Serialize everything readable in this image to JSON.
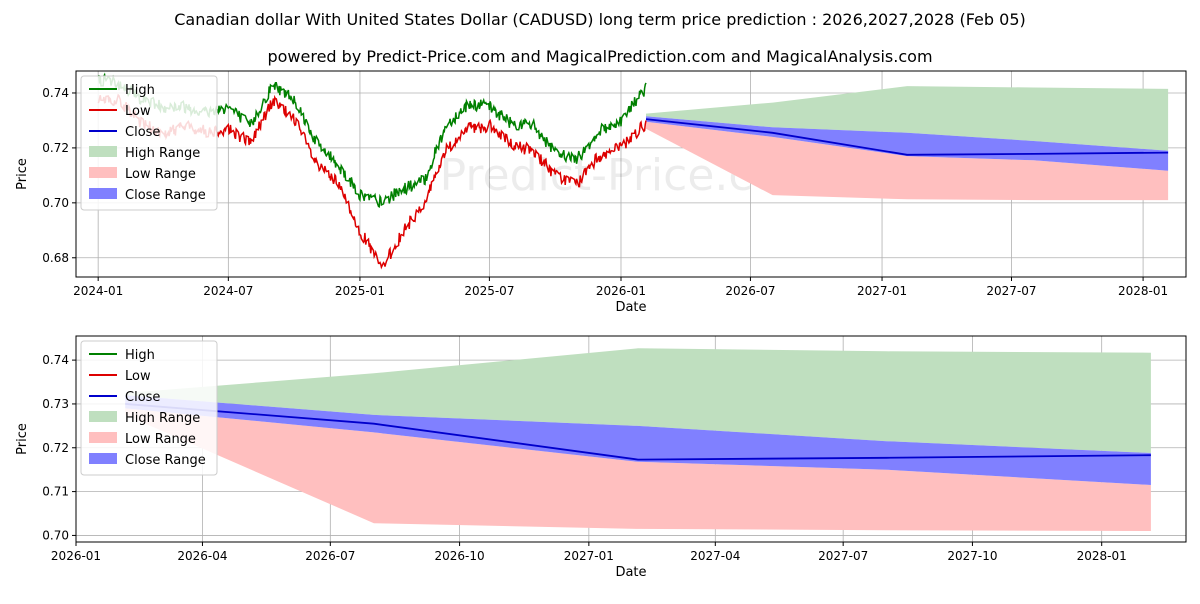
{
  "page": {
    "title": "Canadian dollar With United States Dollar (CADUSD) long term price prediction : 2026,2027,2028 (Feb 05)",
    "subtitle": "powered by Predict-Price.com and MagicalPrediction.com and MagicalAnalysis.com",
    "watermark": "Predict-Price.com"
  },
  "colors": {
    "high": "#008000",
    "low": "#dd0000",
    "close": "#0000cc",
    "high_range": "#bfdfbf",
    "low_range": "#ffbfbf",
    "close_range": "#8080ff",
    "grid": "#b0b0b0"
  },
  "chart_data": [
    {
      "type": "line",
      "xlabel": "Date",
      "ylabel": "Price",
      "xlim": [
        "2023-12-01",
        "2028-03-01"
      ],
      "ylim": [
        0.673,
        0.748
      ],
      "x_ticks": [
        {
          "date": "2024-01-01",
          "label": "2024-01"
        },
        {
          "date": "2024-07-01",
          "label": "2024-07"
        },
        {
          "date": "2025-01-01",
          "label": "2025-01"
        },
        {
          "date": "2025-07-01",
          "label": "2025-07"
        },
        {
          "date": "2026-01-01",
          "label": "2026-01"
        },
        {
          "date": "2026-07-01",
          "label": "2026-07"
        },
        {
          "date": "2027-01-01",
          "label": "2027-01"
        },
        {
          "date": "2027-07-01",
          "label": "2027-07"
        },
        {
          "date": "2028-01-01",
          "label": "2028-01"
        }
      ],
      "y_ticks": [
        {
          "value": 0.68,
          "label": "0.68"
        },
        {
          "value": 0.7,
          "label": "0.70"
        },
        {
          "value": 0.72,
          "label": "0.72"
        },
        {
          "value": 0.74,
          "label": "0.74"
        }
      ],
      "legend": {
        "position": "top-left",
        "entries": [
          {
            "label": "High",
            "kind": "line",
            "color": "#008000"
          },
          {
            "label": "Low",
            "kind": "line",
            "color": "#dd0000"
          },
          {
            "label": "Close",
            "kind": "line",
            "color": "#0000cc"
          },
          {
            "label": "High Range",
            "kind": "patch",
            "color": "#bfdfbf"
          },
          {
            "label": "Low Range",
            "kind": "patch",
            "color": "#ffbfbf"
          },
          {
            "label": "Close Range",
            "kind": "patch",
            "color": "#8080ff"
          }
        ]
      },
      "history": {
        "anchor_dates": [
          "2024-01-01",
          "2024-02-01",
          "2024-03-01",
          "2024-04-01",
          "2024-05-01",
          "2024-06-01",
          "2024-07-01",
          "2024-08-01",
          "2024-09-01",
          "2024-10-01",
          "2024-11-01",
          "2024-12-01",
          "2025-01-01",
          "2025-02-01",
          "2025-03-01",
          "2025-04-01",
          "2025-05-01",
          "2025-06-01",
          "2025-07-01",
          "2025-08-01",
          "2025-09-01",
          "2025-10-01",
          "2025-11-01",
          "2025-12-01",
          "2026-01-01",
          "2026-02-05"
        ],
        "high": [
          0.745,
          0.743,
          0.738,
          0.735,
          0.735,
          0.733,
          0.735,
          0.728,
          0.743,
          0.738,
          0.722,
          0.714,
          0.703,
          0.7,
          0.705,
          0.708,
          0.728,
          0.736,
          0.735,
          0.729,
          0.728,
          0.718,
          0.716,
          0.726,
          0.73,
          0.742
        ],
        "low": [
          0.738,
          0.737,
          0.729,
          0.725,
          0.728,
          0.726,
          0.727,
          0.722,
          0.737,
          0.731,
          0.714,
          0.707,
          0.69,
          0.676,
          0.689,
          0.7,
          0.719,
          0.727,
          0.728,
          0.721,
          0.719,
          0.71,
          0.707,
          0.717,
          0.72,
          0.729
        ]
      },
      "forecast": {
        "dates": [
          "2026-02-05",
          "2026-08-01",
          "2027-02-05",
          "2027-08-01",
          "2028-02-05"
        ],
        "close": [
          0.7305,
          0.7255,
          0.7175,
          0.7178,
          0.7183
        ],
        "close_range_upper": [
          0.7315,
          0.7275,
          0.7255,
          0.7225,
          0.719
        ],
        "close_range_lower": [
          0.7295,
          0.724,
          0.717,
          0.7155,
          0.7117
        ],
        "high_range_upper": [
          0.7325,
          0.7365,
          0.7425,
          0.742,
          0.7415
        ],
        "low_range_lower": [
          0.727,
          0.7028,
          0.7013,
          0.701,
          0.701
        ]
      }
    },
    {
      "type": "area",
      "xlabel": "Date",
      "ylabel": "Price",
      "xlim": [
        "2026-01-01",
        "2028-03-01"
      ],
      "ylim": [
        0.6985,
        0.7455
      ],
      "x_ticks": [
        {
          "date": "2026-01-01",
          "label": "2026-01"
        },
        {
          "date": "2026-04-01",
          "label": "2026-04"
        },
        {
          "date": "2026-07-01",
          "label": "2026-07"
        },
        {
          "date": "2026-10-01",
          "label": "2026-10"
        },
        {
          "date": "2027-01-01",
          "label": "2027-01"
        },
        {
          "date": "2027-04-01",
          "label": "2027-04"
        },
        {
          "date": "2027-07-01",
          "label": "2027-07"
        },
        {
          "date": "2027-10-01",
          "label": "2027-10"
        },
        {
          "date": "2028-01-01",
          "label": "2028-01"
        }
      ],
      "y_ticks": [
        {
          "value": 0.7,
          "label": "0.70"
        },
        {
          "value": 0.71,
          "label": "0.71"
        },
        {
          "value": 0.72,
          "label": "0.72"
        },
        {
          "value": 0.73,
          "label": "0.73"
        },
        {
          "value": 0.74,
          "label": "0.74"
        }
      ],
      "legend": {
        "position": "top-left",
        "entries": [
          {
            "label": "High",
            "kind": "line",
            "color": "#008000"
          },
          {
            "label": "Low",
            "kind": "line",
            "color": "#dd0000"
          },
          {
            "label": "Close",
            "kind": "line",
            "color": "#0000cc"
          },
          {
            "label": "High Range",
            "kind": "patch",
            "color": "#bfdfbf"
          },
          {
            "label": "Low Range",
            "kind": "patch",
            "color": "#ffbfbf"
          },
          {
            "label": "Close Range",
            "kind": "patch",
            "color": "#8080ff"
          }
        ]
      },
      "forecast": {
        "dates": [
          "2026-02-05",
          "2026-08-01",
          "2027-02-05",
          "2027-08-01",
          "2028-02-05"
        ],
        "close": [
          0.73,
          0.7255,
          0.7173,
          0.7177,
          0.7183
        ],
        "close_range_upper": [
          0.732,
          0.7275,
          0.725,
          0.7215,
          0.7188
        ],
        "close_range_lower": [
          0.729,
          0.7235,
          0.7168,
          0.715,
          0.7115
        ],
        "high_range_upper": [
          0.7325,
          0.737,
          0.7427,
          0.742,
          0.7417
        ],
        "low_range_lower": [
          0.7275,
          0.7028,
          0.7015,
          0.7012,
          0.701
        ]
      }
    }
  ]
}
